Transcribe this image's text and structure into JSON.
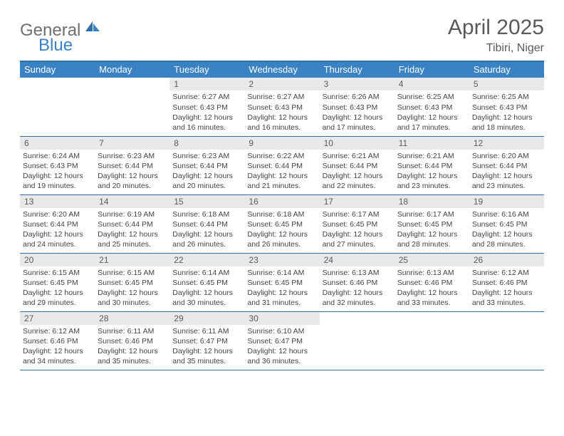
{
  "brand": {
    "word1": "General",
    "word2": "Blue"
  },
  "colors": {
    "brand_blue": "#3b82c4",
    "brand_gray": "#6f6f6f",
    "header_blue": "#3b82c4",
    "border_blue": "#2f6fa8",
    "daynum_bg": "#e9e9e9",
    "text_gray": "#5a5a5a"
  },
  "typography": {
    "title_fontsize": 30,
    "subtitle_fontsize": 16,
    "dayhead_fontsize": 13,
    "daynum_fontsize": 12,
    "info_fontsize": 10.5
  },
  "title": "April 2025",
  "location": "Tibiri, Niger",
  "day_headers": [
    "Sunday",
    "Monday",
    "Tuesday",
    "Wednesday",
    "Thursday",
    "Friday",
    "Saturday"
  ],
  "weeks": [
    [
      {
        "empty": true
      },
      {
        "empty": true
      },
      {
        "num": "1",
        "sunrise": "6:27 AM",
        "sunset": "6:43 PM",
        "daylight": "12 hours and 16 minutes."
      },
      {
        "num": "2",
        "sunrise": "6:27 AM",
        "sunset": "6:43 PM",
        "daylight": "12 hours and 16 minutes."
      },
      {
        "num": "3",
        "sunrise": "6:26 AM",
        "sunset": "6:43 PM",
        "daylight": "12 hours and 17 minutes."
      },
      {
        "num": "4",
        "sunrise": "6:25 AM",
        "sunset": "6:43 PM",
        "daylight": "12 hours and 17 minutes."
      },
      {
        "num": "5",
        "sunrise": "6:25 AM",
        "sunset": "6:43 PM",
        "daylight": "12 hours and 18 minutes."
      }
    ],
    [
      {
        "num": "6",
        "sunrise": "6:24 AM",
        "sunset": "6:43 PM",
        "daylight": "12 hours and 19 minutes."
      },
      {
        "num": "7",
        "sunrise": "6:23 AM",
        "sunset": "6:44 PM",
        "daylight": "12 hours and 20 minutes."
      },
      {
        "num": "8",
        "sunrise": "6:23 AM",
        "sunset": "6:44 PM",
        "daylight": "12 hours and 20 minutes."
      },
      {
        "num": "9",
        "sunrise": "6:22 AM",
        "sunset": "6:44 PM",
        "daylight": "12 hours and 21 minutes."
      },
      {
        "num": "10",
        "sunrise": "6:21 AM",
        "sunset": "6:44 PM",
        "daylight": "12 hours and 22 minutes."
      },
      {
        "num": "11",
        "sunrise": "6:21 AM",
        "sunset": "6:44 PM",
        "daylight": "12 hours and 23 minutes."
      },
      {
        "num": "12",
        "sunrise": "6:20 AM",
        "sunset": "6:44 PM",
        "daylight": "12 hours and 23 minutes."
      }
    ],
    [
      {
        "num": "13",
        "sunrise": "6:20 AM",
        "sunset": "6:44 PM",
        "daylight": "12 hours and 24 minutes."
      },
      {
        "num": "14",
        "sunrise": "6:19 AM",
        "sunset": "6:44 PM",
        "daylight": "12 hours and 25 minutes."
      },
      {
        "num": "15",
        "sunrise": "6:18 AM",
        "sunset": "6:44 PM",
        "daylight": "12 hours and 26 minutes."
      },
      {
        "num": "16",
        "sunrise": "6:18 AM",
        "sunset": "6:45 PM",
        "daylight": "12 hours and 26 minutes."
      },
      {
        "num": "17",
        "sunrise": "6:17 AM",
        "sunset": "6:45 PM",
        "daylight": "12 hours and 27 minutes."
      },
      {
        "num": "18",
        "sunrise": "6:17 AM",
        "sunset": "6:45 PM",
        "daylight": "12 hours and 28 minutes."
      },
      {
        "num": "19",
        "sunrise": "6:16 AM",
        "sunset": "6:45 PM",
        "daylight": "12 hours and 28 minutes."
      }
    ],
    [
      {
        "num": "20",
        "sunrise": "6:15 AM",
        "sunset": "6:45 PM",
        "daylight": "12 hours and 29 minutes."
      },
      {
        "num": "21",
        "sunrise": "6:15 AM",
        "sunset": "6:45 PM",
        "daylight": "12 hours and 30 minutes."
      },
      {
        "num": "22",
        "sunrise": "6:14 AM",
        "sunset": "6:45 PM",
        "daylight": "12 hours and 30 minutes."
      },
      {
        "num": "23",
        "sunrise": "6:14 AM",
        "sunset": "6:45 PM",
        "daylight": "12 hours and 31 minutes."
      },
      {
        "num": "24",
        "sunrise": "6:13 AM",
        "sunset": "6:46 PM",
        "daylight": "12 hours and 32 minutes."
      },
      {
        "num": "25",
        "sunrise": "6:13 AM",
        "sunset": "6:46 PM",
        "daylight": "12 hours and 33 minutes."
      },
      {
        "num": "26",
        "sunrise": "6:12 AM",
        "sunset": "6:46 PM",
        "daylight": "12 hours and 33 minutes."
      }
    ],
    [
      {
        "num": "27",
        "sunrise": "6:12 AM",
        "sunset": "6:46 PM",
        "daylight": "12 hours and 34 minutes."
      },
      {
        "num": "28",
        "sunrise": "6:11 AM",
        "sunset": "6:46 PM",
        "daylight": "12 hours and 35 minutes."
      },
      {
        "num": "29",
        "sunrise": "6:11 AM",
        "sunset": "6:47 PM",
        "daylight": "12 hours and 35 minutes."
      },
      {
        "num": "30",
        "sunrise": "6:10 AM",
        "sunset": "6:47 PM",
        "daylight": "12 hours and 36 minutes."
      },
      {
        "empty": true
      },
      {
        "empty": true
      },
      {
        "empty": true
      }
    ]
  ],
  "labels": {
    "sunrise_prefix": "Sunrise: ",
    "sunset_prefix": "Sunset: ",
    "daylight_prefix": "Daylight: "
  }
}
